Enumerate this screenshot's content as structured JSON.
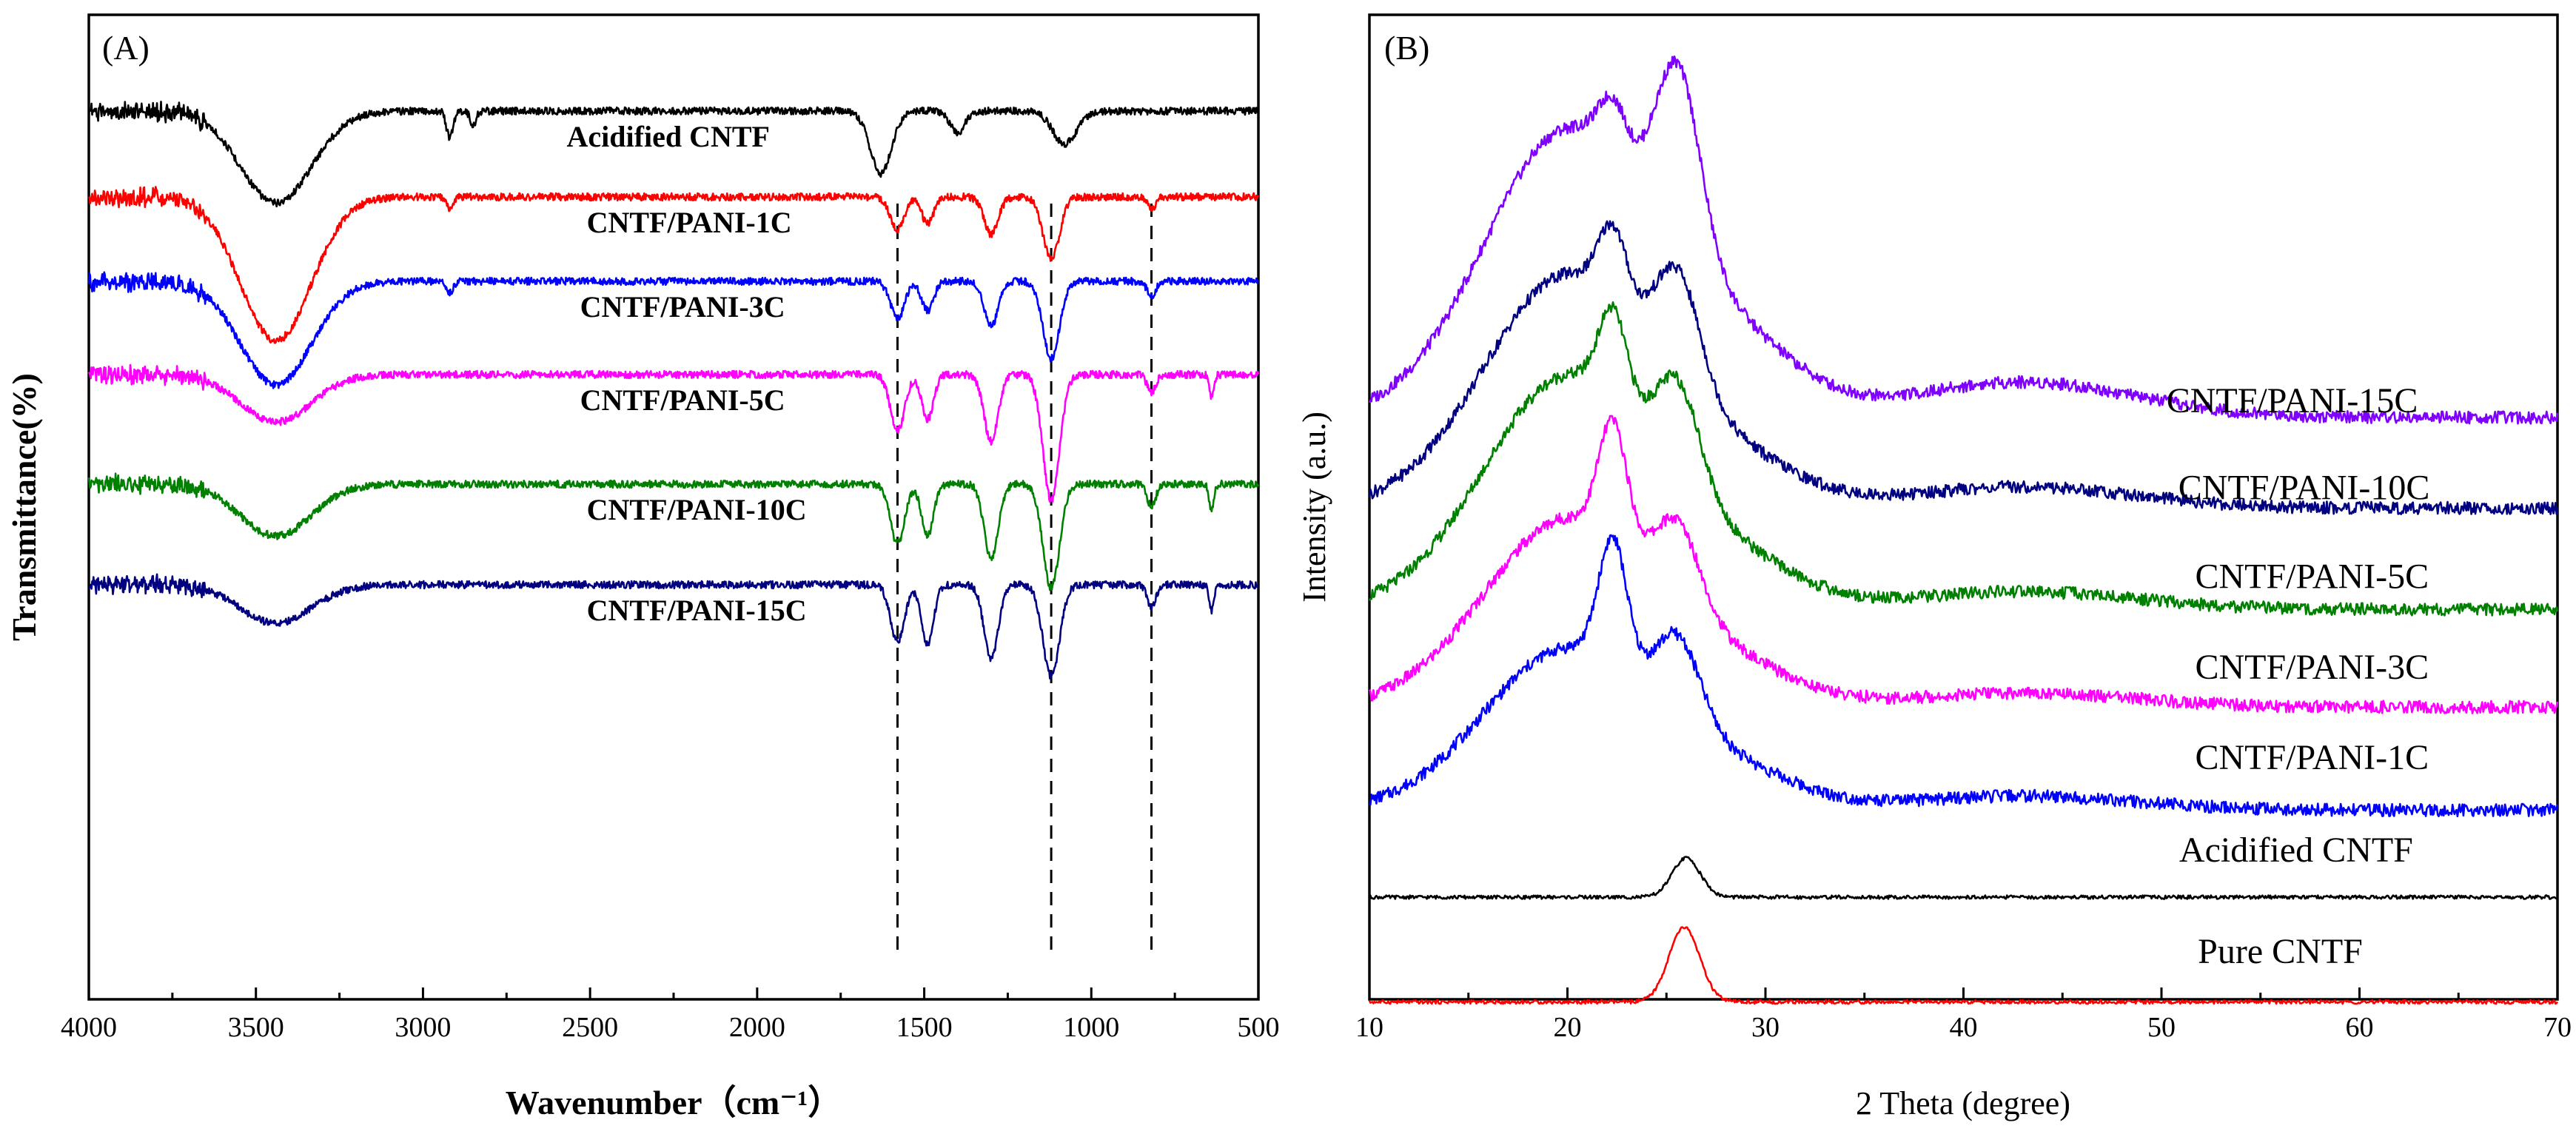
{
  "chart_data": [
    {
      "type": "line",
      "panel_label": "(A)",
      "xlabel": "Wavenumber（cm⁻¹）",
      "ylabel": "Transmittance(%)",
      "xlim": [
        4000,
        500
      ],
      "x_reversed": true,
      "x_ticks": [
        4000,
        3500,
        3000,
        2500,
        2000,
        1500,
        1000,
        500
      ],
      "y_ticks": [],
      "reference_lines": [
        1580,
        1120,
        820
      ],
      "series": [
        {
          "name": "Acidified CNTF",
          "color": "#000000",
          "offset": 0.0,
          "label_x": 2570,
          "features": [
            {
              "c": 3440,
              "w": 150,
              "d": 0.62
            },
            {
              "c": 2920,
              "w": 14,
              "d": 0.18
            },
            {
              "c": 2850,
              "w": 12,
              "d": 0.1
            },
            {
              "c": 1630,
              "w": 45,
              "d": 0.42
            },
            {
              "c": 1400,
              "w": 30,
              "d": 0.15
            },
            {
              "c": 1080,
              "w": 50,
              "d": 0.22
            }
          ]
        },
        {
          "name": "CNTF/PANI-1C",
          "color": "#ff0000",
          "offset": 0.58,
          "label_x": 2510,
          "features": [
            {
              "c": 3440,
              "w": 150,
              "d": 0.97
            },
            {
              "c": 2920,
              "w": 14,
              "d": 0.08
            },
            {
              "c": 1580,
              "w": 30,
              "d": 0.22
            },
            {
              "c": 1490,
              "w": 25,
              "d": 0.18
            },
            {
              "c": 1300,
              "w": 30,
              "d": 0.25
            },
            {
              "c": 1120,
              "w": 35,
              "d": 0.42
            },
            {
              "c": 820,
              "w": 18,
              "d": 0.08
            }
          ]
        },
        {
          "name": "CNTF/PANI-3C",
          "color": "#0000ff",
          "offset": 1.15,
          "label_x": 2530,
          "features": [
            {
              "c": 3440,
              "w": 150,
              "d": 0.7
            },
            {
              "c": 2920,
              "w": 14,
              "d": 0.08
            },
            {
              "c": 1580,
              "w": 30,
              "d": 0.25
            },
            {
              "c": 1490,
              "w": 25,
              "d": 0.2
            },
            {
              "c": 1300,
              "w": 30,
              "d": 0.3
            },
            {
              "c": 1120,
              "w": 35,
              "d": 0.52
            },
            {
              "c": 820,
              "w": 18,
              "d": 0.1
            }
          ]
        },
        {
          "name": "CNTF/PANI-5C",
          "color": "#ff00ff",
          "offset": 1.78,
          "label_x": 2530,
          "features": [
            {
              "c": 3440,
              "w": 150,
              "d": 0.32
            },
            {
              "c": 1580,
              "w": 30,
              "d": 0.38
            },
            {
              "c": 1490,
              "w": 25,
              "d": 0.3
            },
            {
              "c": 1300,
              "w": 30,
              "d": 0.45
            },
            {
              "c": 1120,
              "w": 35,
              "d": 0.85
            },
            {
              "c": 820,
              "w": 18,
              "d": 0.12
            },
            {
              "c": 640,
              "w": 10,
              "d": 0.15
            }
          ]
        },
        {
          "name": "CNTF/PANI-10C",
          "color": "#008000",
          "offset": 2.52,
          "label_x": 2510,
          "features": [
            {
              "c": 3440,
              "w": 150,
              "d": 0.35
            },
            {
              "c": 1580,
              "w": 30,
              "d": 0.4
            },
            {
              "c": 1490,
              "w": 25,
              "d": 0.35
            },
            {
              "c": 1300,
              "w": 30,
              "d": 0.5
            },
            {
              "c": 1120,
              "w": 35,
              "d": 0.7
            },
            {
              "c": 820,
              "w": 18,
              "d": 0.15
            },
            {
              "c": 640,
              "w": 10,
              "d": 0.18
            }
          ]
        },
        {
          "name": "CNTF/PANI-15C",
          "color": "#000080",
          "offset": 3.2,
          "label_x": 2510,
          "features": [
            {
              "c": 3440,
              "w": 150,
              "d": 0.26
            },
            {
              "c": 1580,
              "w": 30,
              "d": 0.38
            },
            {
              "c": 1490,
              "w": 25,
              "d": 0.4
            },
            {
              "c": 1300,
              "w": 30,
              "d": 0.5
            },
            {
              "c": 1120,
              "w": 35,
              "d": 0.62
            },
            {
              "c": 820,
              "w": 18,
              "d": 0.15
            },
            {
              "c": 640,
              "w": 10,
              "d": 0.18
            }
          ]
        }
      ]
    },
    {
      "type": "line",
      "panel_label": "(B)",
      "xlabel": "2 Theta (degree)",
      "ylabel": "Intensity (a.u.)",
      "xlim": [
        10,
        70
      ],
      "x_ticks": [
        10,
        20,
        30,
        40,
        50,
        60,
        70
      ],
      "y_ticks": [],
      "series": [
        {
          "name": "CNTF/PANI-15C",
          "color": "#8000ff",
          "baseline": 1.85,
          "label_x": 56.6,
          "label_h": 1.92,
          "features": [
            {
              "c": 20,
              "w": 6,
              "a": 1.6
            },
            {
              "c": 22.3,
              "w": 1.0,
              "a": 0.3
            },
            {
              "c": 25.6,
              "w": 1.6,
              "a": 1.0
            },
            {
              "c": 28,
              "w": 5,
              "a": 0.4
            },
            {
              "c": 43,
              "w": 8,
              "a": 0.2
            }
          ]
        },
        {
          "name": "CNTF/PANI-10C",
          "color": "#000080",
          "baseline": 2.36,
          "label_x": 57.2,
          "label_h": 2.41,
          "features": [
            {
              "c": 20,
              "w": 6,
              "a": 1.3
            },
            {
              "c": 22.3,
              "w": 1.0,
              "a": 0.4
            },
            {
              "c": 25.6,
              "w": 1.6,
              "a": 0.6
            },
            {
              "c": 28,
              "w": 5,
              "a": 0.25
            },
            {
              "c": 43,
              "w": 8,
              "a": 0.12
            }
          ]
        },
        {
          "name": "CNTF/PANI-5C",
          "color": "#008000",
          "baseline": 2.93,
          "label_x": 57.6,
          "label_h": 2.91,
          "features": [
            {
              "c": 20,
              "w": 6,
              "a": 1.3
            },
            {
              "c": 22.3,
              "w": 1.0,
              "a": 0.5
            },
            {
              "c": 25.6,
              "w": 1.6,
              "a": 0.55
            },
            {
              "c": 28,
              "w": 5,
              "a": 0.25
            },
            {
              "c": 43,
              "w": 8,
              "a": 0.1
            }
          ]
        },
        {
          "name": "CNTF/PANI-3C",
          "color": "#ff00ff",
          "baseline": 3.48,
          "label_x": 57.6,
          "label_h": 3.42,
          "features": [
            {
              "c": 20,
              "w": 6,
              "a": 1.05
            },
            {
              "c": 22.3,
              "w": 1.0,
              "a": 0.65
            },
            {
              "c": 25.6,
              "w": 1.6,
              "a": 0.45
            },
            {
              "c": 28,
              "w": 5,
              "a": 0.2
            },
            {
              "c": 43,
              "w": 8,
              "a": 0.08
            }
          ]
        },
        {
          "name": "CNTF/PANI-1C",
          "color": "#0000ff",
          "baseline": 4.06,
          "label_x": 57.6,
          "label_h": 3.93,
          "features": [
            {
              "c": 20,
              "w": 6,
              "a": 0.9
            },
            {
              "c": 22.3,
              "w": 1.0,
              "a": 0.7
            },
            {
              "c": 25.6,
              "w": 1.6,
              "a": 0.45
            },
            {
              "c": 28,
              "w": 5,
              "a": 0.2
            },
            {
              "c": 43,
              "w": 8,
              "a": 0.08
            }
          ]
        },
        {
          "name": "Acidified CNTF",
          "color": "#000000",
          "baseline": 4.55,
          "label_x": 56.8,
          "label_h": 4.45,
          "features": [
            {
              "c": 26,
              "w": 1.0,
              "a": 0.22
            }
          ]
        },
        {
          "name": "Pure CNTF",
          "color": "#ff0000",
          "baseline": 5.14,
          "label_x": 56.0,
          "label_h": 5.02,
          "features": [
            {
              "c": 25.9,
              "w": 1.1,
              "a": 0.42
            }
          ]
        }
      ]
    }
  ]
}
